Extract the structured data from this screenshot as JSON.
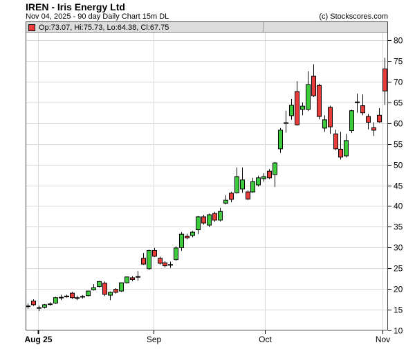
{
  "header": {
    "title": "IREN - Iris Energy Ltd",
    "subtitle": "Nov 04, 2025 - 90 day  Daily Chart 15m DL",
    "copyright": "(c) Stockscores.com"
  },
  "legend": {
    "ohlc_label": "Op:73.07, Hi:75.73, Lo:64.38, Cl:67.75"
  },
  "chart_data": {
    "type": "candlestick",
    "symbol": "IREN",
    "company": "Iris Energy Ltd",
    "as_of_date": "Nov 04, 2025",
    "range": "90 day",
    "interval": "Daily Chart 15m DL",
    "last_bar": {
      "open": 73.07,
      "high": 75.73,
      "low": 64.38,
      "close": 67.75
    },
    "ylim": [
      10,
      80
    ],
    "yticks": [
      10,
      15,
      20,
      25,
      30,
      35,
      40,
      45,
      50,
      55,
      60,
      65,
      70,
      75,
      80
    ],
    "xticks": [
      {
        "label": "Aug 25",
        "index": 1.9,
        "bold": true
      },
      {
        "label": "Sep",
        "index": 22.9,
        "bold": false
      },
      {
        "label": "Oct",
        "index": 43.2,
        "bold": false
      },
      {
        "label": "Nov",
        "index": 64.6,
        "bold": false
      }
    ],
    "grid": true,
    "legend_position": "top-left",
    "colors": {
      "up": "#3dcb3d",
      "down": "#e73c38",
      "wick": "#000000"
    },
    "candles": [
      [
        15.8,
        16.5,
        15.2,
        15.9
      ],
      [
        17.1,
        17.5,
        15.9,
        16.2
      ],
      [
        15.5,
        16.0,
        14.7,
        15.4
      ],
      [
        15.6,
        16.4,
        15.3,
        16.2
      ],
      [
        16.4,
        16.8,
        16.0,
        16.4
      ],
      [
        16.6,
        18.1,
        16.4,
        17.9
      ],
      [
        18.0,
        18.6,
        17.3,
        18.0
      ],
      [
        18.3,
        18.6,
        17.9,
        18.1
      ],
      [
        19.0,
        19.3,
        17.6,
        17.9
      ],
      [
        17.9,
        18.4,
        17.3,
        17.9
      ],
      [
        18.1,
        18.5,
        17.7,
        18.2
      ],
      [
        18.4,
        19.6,
        18.2,
        19.5
      ],
      [
        19.8,
        21.2,
        19.6,
        20.3
      ],
      [
        20.6,
        21.9,
        20.4,
        21.8
      ],
      [
        21.4,
        21.8,
        18.3,
        18.7
      ],
      [
        18.5,
        19.4,
        17.3,
        19.2
      ],
      [
        19.9,
        20.2,
        18.9,
        19.2
      ],
      [
        19.5,
        21.6,
        19.3,
        21.5
      ],
      [
        21.5,
        23.0,
        21.3,
        22.9
      ],
      [
        22.7,
        23.1,
        21.9,
        22.3
      ],
      [
        22.9,
        24.3,
        22.0,
        23.0
      ],
      [
        27.4,
        28.7,
        25.8,
        26.0
      ],
      [
        24.9,
        29.5,
        24.6,
        29.3
      ],
      [
        29.3,
        29.9,
        27.7,
        27.9
      ],
      [
        27.4,
        27.8,
        25.9,
        26.2
      ],
      [
        26.3,
        26.7,
        25.2,
        25.6
      ],
      [
        25.9,
        26.6,
        25.1,
        25.9
      ],
      [
        27.1,
        30.3,
        26.8,
        29.9
      ],
      [
        30.0,
        33.7,
        29.2,
        33.2
      ],
      [
        32.7,
        33.3,
        32.0,
        32.3
      ],
      [
        32.9,
        34.0,
        32.5,
        33.7
      ],
      [
        34.3,
        37.6,
        33.2,
        37.4
      ],
      [
        37.4,
        37.9,
        35.5,
        35.9
      ],
      [
        35.4,
        38.2,
        34.9,
        37.9
      ],
      [
        38.2,
        38.6,
        36.2,
        36.6
      ],
      [
        36.6,
        39.6,
        36.3,
        38.7
      ],
      [
        40.7,
        42.6,
        40.4,
        41.4
      ],
      [
        43.1,
        43.4,
        40.9,
        41.6
      ],
      [
        43.2,
        49.3,
        43.0,
        47.1
      ],
      [
        44.1,
        49.3,
        43.2,
        46.3
      ],
      [
        43.4,
        43.8,
        41.5,
        41.7
      ],
      [
        43.4,
        46.8,
        43.2,
        45.9
      ],
      [
        45.1,
        47.3,
        44.7,
        46.8
      ],
      [
        46.6,
        47.9,
        45.9,
        47.1
      ],
      [
        48.4,
        48.9,
        46.5,
        46.8
      ],
      [
        47.6,
        50.6,
        44.6,
        50.4
      ],
      [
        53.8,
        58.8,
        52.8,
        58.3
      ],
      [
        60.0,
        63.0,
        57.7,
        60.1
      ],
      [
        61.8,
        65.8,
        60.8,
        64.3
      ],
      [
        67.6,
        70.1,
        59.4,
        59.6
      ],
      [
        63.3,
        65.0,
        61.9,
        64.1
      ],
      [
        63.3,
        72.5,
        62.9,
        69.3
      ],
      [
        71.3,
        74.2,
        66.3,
        66.6
      ],
      [
        69.1,
        69.5,
        60.9,
        61.6
      ],
      [
        58.8,
        61.9,
        57.9,
        60.8
      ],
      [
        63.8,
        64.2,
        57.4,
        59.1
      ],
      [
        57.4,
        58.4,
        53.5,
        53.8
      ],
      [
        53.7,
        57.9,
        51.2,
        51.8
      ],
      [
        52.1,
        57.4,
        51.7,
        55.8
      ],
      [
        58.2,
        63.2,
        57.6,
        63.0
      ],
      [
        65.0,
        67.1,
        62.5,
        65.1
      ],
      [
        64.2,
        66.9,
        61.9,
        62.5
      ],
      [
        61.6,
        62.2,
        58.5,
        60.2
      ],
      [
        58.9,
        60.2,
        56.9,
        58.3
      ],
      [
        61.9,
        63.6,
        60.1,
        60.3
      ],
      [
        73.07,
        75.73,
        64.38,
        67.75
      ]
    ]
  }
}
